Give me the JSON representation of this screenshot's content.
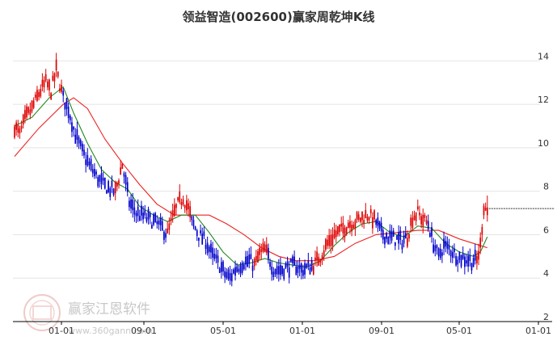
{
  "title": "领益智造(002600)赢家周乾坤K线",
  "watermark": {
    "brand": "赢家江恩软件",
    "url": "www.360gann.com"
  },
  "colors": {
    "up": "#dd0000",
    "down": "#0000cc",
    "ma_short": "#228822",
    "ma_long": "#ee2222",
    "grid": "#e4e4e4",
    "axis": "#000000",
    "level_line": "#333333"
  },
  "chart_data": {
    "type": "candlestick",
    "title": "领益智造(002600)赢家周乾坤K线",
    "ylim": [
      2,
      15.5
    ],
    "y_ticks": [
      2,
      4,
      6,
      8,
      10,
      12,
      14
    ],
    "x_ticks": [
      "01-01",
      "09-01",
      "05-01",
      "01-01",
      "09-01",
      "05-01",
      "01-01"
    ],
    "grid": true,
    "level_line": 7.2,
    "segments": [
      {
        "trend": "up",
        "close_path": [
          [
            0,
            11.0
          ],
          [
            3,
            10.6
          ],
          [
            6,
            11.3
          ],
          [
            10,
            11.8
          ],
          [
            14,
            12.5
          ],
          [
            18,
            13.0
          ],
          [
            21,
            12.6
          ],
          [
            24,
            13.6
          ],
          [
            26,
            12.9
          ],
          [
            28,
            12.3
          ]
        ]
      },
      {
        "trend": "down",
        "close_path": [
          [
            28,
            12.3
          ],
          [
            31,
            11.8
          ],
          [
            35,
            10.6
          ],
          [
            39,
            9.8
          ],
          [
            43,
            9.2
          ],
          [
            47,
            8.7
          ],
          [
            51,
            8.3
          ],
          [
            55,
            8.1
          ],
          [
            58,
            8.0
          ]
        ]
      },
      {
        "trend": "up",
        "close_path": [
          [
            58,
            8.0
          ],
          [
            60,
            8.6
          ],
          [
            62,
            9.2
          ],
          [
            63,
            8.8
          ]
        ]
      },
      {
        "trend": "down",
        "close_path": [
          [
            63,
            8.8
          ],
          [
            66,
            7.5
          ],
          [
            70,
            7.0
          ],
          [
            75,
            6.8
          ],
          [
            80,
            6.6
          ],
          [
            85,
            6.3
          ],
          [
            88,
            6.0
          ]
        ]
      },
      {
        "trend": "up",
        "close_path": [
          [
            88,
            6.0
          ],
          [
            91,
            6.8
          ],
          [
            94,
            7.4
          ],
          [
            97,
            7.7
          ],
          [
            100,
            7.2
          ],
          [
            102,
            6.6
          ]
        ]
      },
      {
        "trend": "down",
        "close_path": [
          [
            102,
            6.6
          ],
          [
            106,
            6.0
          ],
          [
            110,
            5.7
          ],
          [
            114,
            5.0
          ],
          [
            118,
            4.6
          ],
          [
            121,
            4.2
          ],
          [
            124,
            4.0
          ],
          [
            127,
            4.4
          ],
          [
            131,
            4.7
          ],
          [
            135,
            4.8
          ],
          [
            138,
            4.6
          ]
        ]
      },
      {
        "trend": "up",
        "close_path": [
          [
            138,
            4.6
          ],
          [
            141,
            5.1
          ],
          [
            144,
            5.3
          ],
          [
            146,
            5.0
          ]
        ]
      },
      {
        "trend": "down",
        "close_path": [
          [
            146,
            5.0
          ],
          [
            149,
            4.4
          ],
          [
            153,
            4.4
          ],
          [
            157,
            4.5
          ],
          [
            161,
            4.6
          ],
          [
            165,
            4.4
          ],
          [
            169,
            4.5
          ],
          [
            172,
            4.6
          ]
        ]
      },
      {
        "trend": "up",
        "close_path": [
          [
            172,
            4.6
          ],
          [
            176,
            5.0
          ],
          [
            180,
            5.6
          ],
          [
            184,
            6.0
          ],
          [
            188,
            6.2
          ],
          [
            192,
            6.5
          ],
          [
            196,
            6.6
          ],
          [
            200,
            6.8
          ],
          [
            204,
            6.9
          ],
          [
            208,
            6.6
          ]
        ]
      },
      {
        "trend": "down",
        "close_path": [
          [
            208,
            6.6
          ],
          [
            211,
            6.1
          ],
          [
            215,
            5.9
          ],
          [
            219,
            5.8
          ],
          [
            223,
            5.7
          ],
          [
            226,
            5.9
          ]
        ]
      },
      {
        "trend": "up",
        "close_path": [
          [
            226,
            5.9
          ],
          [
            229,
            6.8
          ],
          [
            232,
            7.0
          ],
          [
            235,
            6.7
          ],
          [
            238,
            6.5
          ]
        ]
      },
      {
        "trend": "down",
        "close_path": [
          [
            238,
            6.5
          ],
          [
            241,
            5.6
          ],
          [
            244,
            5.0
          ],
          [
            247,
            5.5
          ],
          [
            251,
            5.3
          ],
          [
            255,
            5.0
          ],
          [
            259,
            4.9
          ],
          [
            263,
            4.8
          ],
          [
            266,
            4.8
          ]
        ]
      },
      {
        "trend": "up",
        "close_path": [
          [
            266,
            4.8
          ],
          [
            268,
            5.5
          ],
          [
            269,
            6.4
          ],
          [
            270,
            7.3
          ],
          [
            272,
            7.1
          ]
        ]
      }
    ],
    "ma_short": [
      [
        0,
        11.0
      ],
      [
        10,
        11.4
      ],
      [
        20,
        12.3
      ],
      [
        28,
        12.8
      ],
      [
        34,
        11.6
      ],
      [
        42,
        10.2
      ],
      [
        50,
        9.0
      ],
      [
        58,
        8.4
      ],
      [
        65,
        8.1
      ],
      [
        72,
        7.3
      ],
      [
        80,
        6.9
      ],
      [
        88,
        6.6
      ],
      [
        96,
        6.9
      ],
      [
        104,
        6.9
      ],
      [
        112,
        6.1
      ],
      [
        120,
        5.2
      ],
      [
        128,
        4.6
      ],
      [
        136,
        4.7
      ],
      [
        144,
        4.9
      ],
      [
        152,
        4.7
      ],
      [
        160,
        4.6
      ],
      [
        168,
        4.5
      ],
      [
        176,
        4.8
      ],
      [
        184,
        5.5
      ],
      [
        192,
        6.1
      ],
      [
        200,
        6.5
      ],
      [
        208,
        6.6
      ],
      [
        216,
        6.1
      ],
      [
        224,
        5.9
      ],
      [
        232,
        6.4
      ],
      [
        240,
        6.3
      ],
      [
        248,
        5.6
      ],
      [
        256,
        5.2
      ],
      [
        264,
        5.0
      ],
      [
        268,
        5.2
      ],
      [
        272,
        5.9
      ]
    ],
    "ma_long": [
      [
        0,
        9.6
      ],
      [
        14,
        10.9
      ],
      [
        28,
        12.0
      ],
      [
        34,
        12.3
      ],
      [
        42,
        11.8
      ],
      [
        52,
        10.4
      ],
      [
        62,
        9.3
      ],
      [
        72,
        8.3
      ],
      [
        82,
        7.4
      ],
      [
        92,
        6.9
      ],
      [
        102,
        6.9
      ],
      [
        112,
        6.9
      ],
      [
        122,
        6.5
      ],
      [
        132,
        6.0
      ],
      [
        142,
        5.4
      ],
      [
        152,
        5.0
      ],
      [
        162,
        4.8
      ],
      [
        172,
        4.8
      ],
      [
        184,
        5.0
      ],
      [
        196,
        5.6
      ],
      [
        208,
        6.0
      ],
      [
        220,
        6.1
      ],
      [
        232,
        6.2
      ],
      [
        244,
        6.2
      ],
      [
        256,
        5.8
      ],
      [
        264,
        5.6
      ],
      [
        272,
        5.4
      ]
    ]
  }
}
